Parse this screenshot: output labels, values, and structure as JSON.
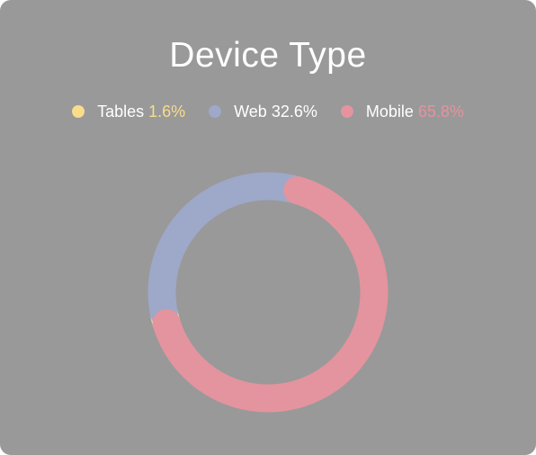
{
  "card": {
    "title": "Device Type"
  },
  "chart_data": {
    "type": "pie",
    "variant": "donut",
    "title": "Device Type",
    "legend_position": "top",
    "series": [
      {
        "name": "Tables",
        "percent_text": "1.6%",
        "value": 1.6,
        "color": "#f9dc8c",
        "label_color": "#f9dc8c"
      },
      {
        "name": "Web",
        "percent_text": "32.6%",
        "value": 32.6,
        "color": "#9ea8c9",
        "label_color": "#ffffff"
      },
      {
        "name": "Mobile",
        "percent_text": "65.8%",
        "value": 65.8,
        "color": "#e3949e",
        "label_color": "#e3949e"
      }
    ]
  }
}
